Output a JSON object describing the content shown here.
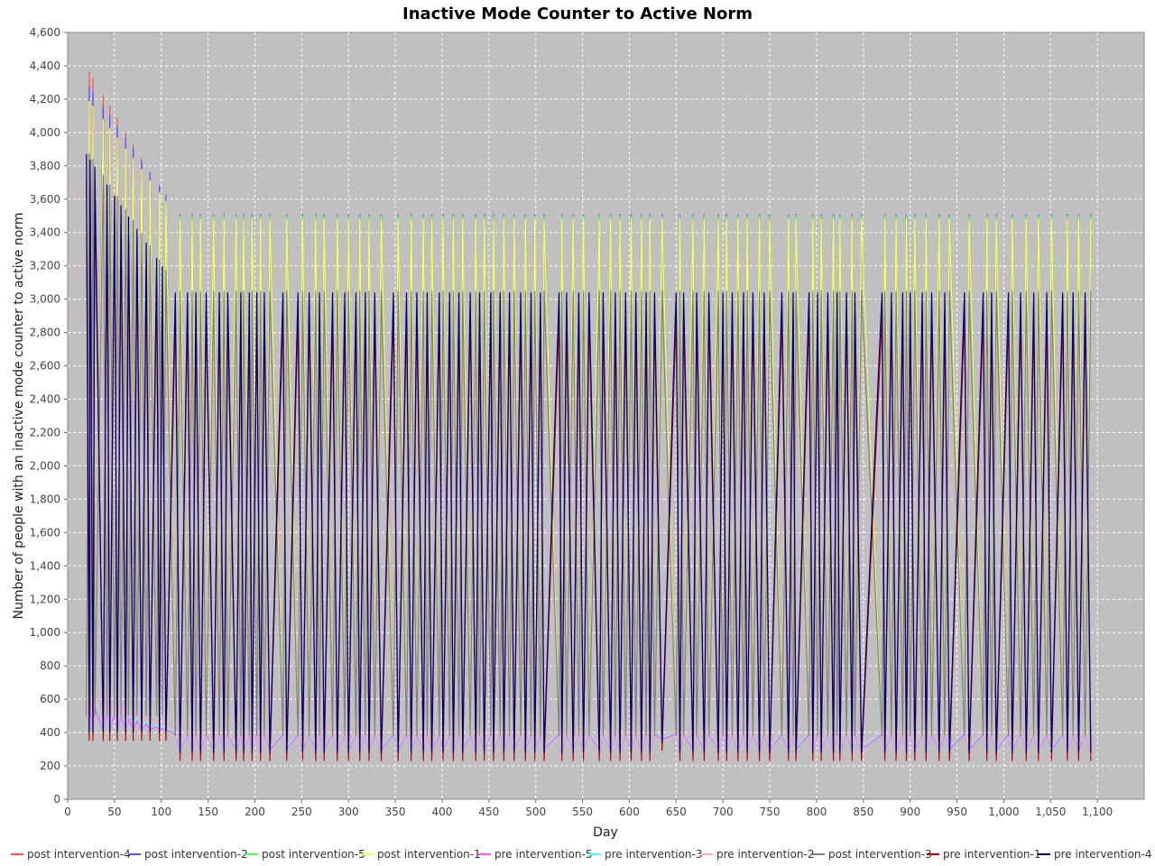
{
  "chart_data": {
    "type": "line",
    "title": "Inactive Mode Counter to Active Norm",
    "xlabel": "Day",
    "ylabel": "Number of people with an inactive mode counter to active norm",
    "xlim": [
      0,
      1150
    ],
    "ylim": [
      0,
      4600
    ],
    "x_ticks": [
      0,
      50,
      100,
      150,
      200,
      250,
      300,
      350,
      400,
      450,
      500,
      550,
      600,
      650,
      700,
      750,
      800,
      850,
      900,
      950,
      1000,
      1050,
      1100
    ],
    "x_tick_labels": [
      "0",
      "50",
      "100",
      "150",
      "200",
      "250",
      "300",
      "350",
      "400",
      "450",
      "500",
      "550",
      "600",
      "650",
      "700",
      "750",
      "800",
      "850",
      "900",
      "950",
      "1,000",
      "1,050",
      "1,100"
    ],
    "y_ticks": [
      0,
      200,
      400,
      600,
      800,
      1000,
      1200,
      1400,
      1600,
      1800,
      2000,
      2200,
      2400,
      2600,
      2800,
      3000,
      3200,
      3400,
      3600,
      3800,
      4000,
      4200,
      4400,
      4600
    ],
    "y_tick_labels": [
      "0",
      "200",
      "400",
      "600",
      "800",
      "1,000",
      "1,200",
      "1,400",
      "1,600",
      "1,800",
      "2,000",
      "2,200",
      "2,400",
      "2,600",
      "2,800",
      "3,000",
      "3,200",
      "3,400",
      "3,600",
      "3,800",
      "4,000",
      "4,200",
      "4,400",
      "4,600"
    ],
    "grid": true,
    "legend_position": "bottom",
    "plot_background": "#c0c0c0",
    "days": [
      20,
      23,
      24,
      27,
      29,
      38,
      42,
      45,
      50,
      53,
      57,
      62,
      65,
      70,
      74,
      79,
      84,
      88,
      95,
      98,
      101,
      105,
      115,
      120,
      128,
      133,
      137,
      142,
      148,
      156,
      162,
      167,
      171,
      180,
      185,
      188,
      194,
      197,
      202,
      206,
      210,
      216,
      230,
      234,
      246,
      251,
      258,
      265,
      269,
      274,
      283,
      288,
      296,
      300,
      308,
      312,
      318,
      322,
      328,
      335,
      348,
      353,
      362,
      367,
      373,
      380,
      384,
      389,
      397,
      401,
      408,
      412,
      418,
      422,
      430,
      436,
      440,
      445,
      452,
      455,
      462,
      466,
      472,
      477,
      484,
      489,
      495,
      499,
      505,
      509,
      525,
      528,
      533,
      540,
      546,
      551,
      557,
      568,
      572,
      580,
      585,
      590,
      596,
      602,
      607,
      613,
      618,
      622,
      627,
      635,
      650,
      654,
      658,
      668,
      672,
      680,
      685,
      695,
      700,
      704,
      710,
      716,
      722,
      726,
      732,
      739,
      744,
      750,
      763,
      770,
      775,
      778,
      792,
      796,
      801,
      805,
      812,
      818,
      822,
      825,
      832,
      838,
      841,
      848,
      870,
      873,
      880,
      885,
      892,
      896,
      900,
      905,
      913,
      917,
      923,
      931,
      937,
      942,
      958,
      963,
      978,
      982,
      987,
      992,
      1005,
      1009,
      1018,
      1024,
      1032,
      1037,
      1046,
      1051,
      1063,
      1068,
      1074,
      1080,
      1087,
      1093
    ],
    "series": [
      {
        "name": "post intervention-4",
        "color": "#ff5555",
        "profile": "up",
        "low": 400,
        "high": 3470,
        "early": 4390
      },
      {
        "name": "post intervention-2",
        "color": "#5555ff",
        "profile": "up",
        "low": 420,
        "high": 3510,
        "early": 4300
      },
      {
        "name": "post intervention-5",
        "color": "#55ff55",
        "profile": "up",
        "low": 410,
        "high": 3500,
        "early": 4000
      },
      {
        "name": "post intervention-1",
        "color": "#ffff55",
        "profile": "up",
        "low": 395,
        "high": 3480,
        "early": 4210
      },
      {
        "name": "pre intervention-5",
        "color": "#ff55ff",
        "profile": "down",
        "low": 300,
        "high": 390,
        "early": 560
      },
      {
        "name": "pre intervention-3",
        "color": "#55ffff",
        "profile": "down",
        "low": 310,
        "high": 400,
        "early": 600
      },
      {
        "name": "pre intervention-2",
        "color": "#ffafaf",
        "profile": "down",
        "low": 320,
        "high": 410,
        "early": 640
      },
      {
        "name": "post intervention-3",
        "color": "#808080",
        "profile": "up",
        "low": 380,
        "high": 3050,
        "early": 3900
      },
      {
        "name": "pre intervention-1",
        "color": "#c00000",
        "profile": "down",
        "low": 230,
        "high": 2900,
        "early": 3720
      },
      {
        "name": "pre intervention-4",
        "color": "#00007f",
        "profile": "down",
        "low": 280,
        "high": 3040,
        "early": 3870
      }
    ]
  }
}
